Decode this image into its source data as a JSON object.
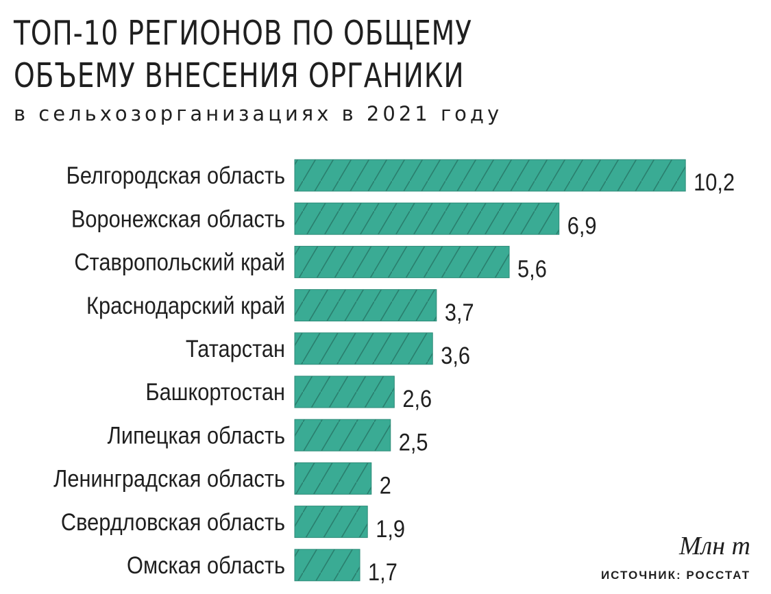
{
  "header": {
    "title_line_1": "ТОП-10 РЕГИОНОВ ПО ОБЩЕМУ",
    "title_line_2": "ОБЪЕМУ ВНЕСЕНИЯ ОРГАНИКИ",
    "subtitle": "в сельхозорганизациях в 2021 году"
  },
  "footer": {
    "unit": "Млн т",
    "source": "ИСТОЧНИК: РОССТАТ"
  },
  "colors": {
    "bar_fill": "#3aab94",
    "bar_hatch": "#2a7f6e",
    "bar_edge": "#2c8a77",
    "text": "#1f1f1f"
  },
  "chart_data": {
    "type": "bar",
    "orientation": "horizontal",
    "categories": [
      "Белгородская область",
      "Воронежская область",
      "Ставропольский край",
      "Краснодарский край",
      "Татарстан",
      "Башкортостан",
      "Липецкая область",
      "Ленинградская область",
      "Свердловская область",
      "Омская область"
    ],
    "values": [
      10.2,
      6.9,
      5.6,
      3.7,
      3.6,
      2.6,
      2.5,
      2,
      1.9,
      1.7
    ],
    "value_labels": [
      "10,2",
      "6,9",
      "5,6",
      "3,7",
      "3,6",
      "2,6",
      "2,5",
      "2",
      "1,9",
      "1,7"
    ],
    "bar_pattern": "diagonal-hatch",
    "grid": false,
    "legend": "none"
  }
}
